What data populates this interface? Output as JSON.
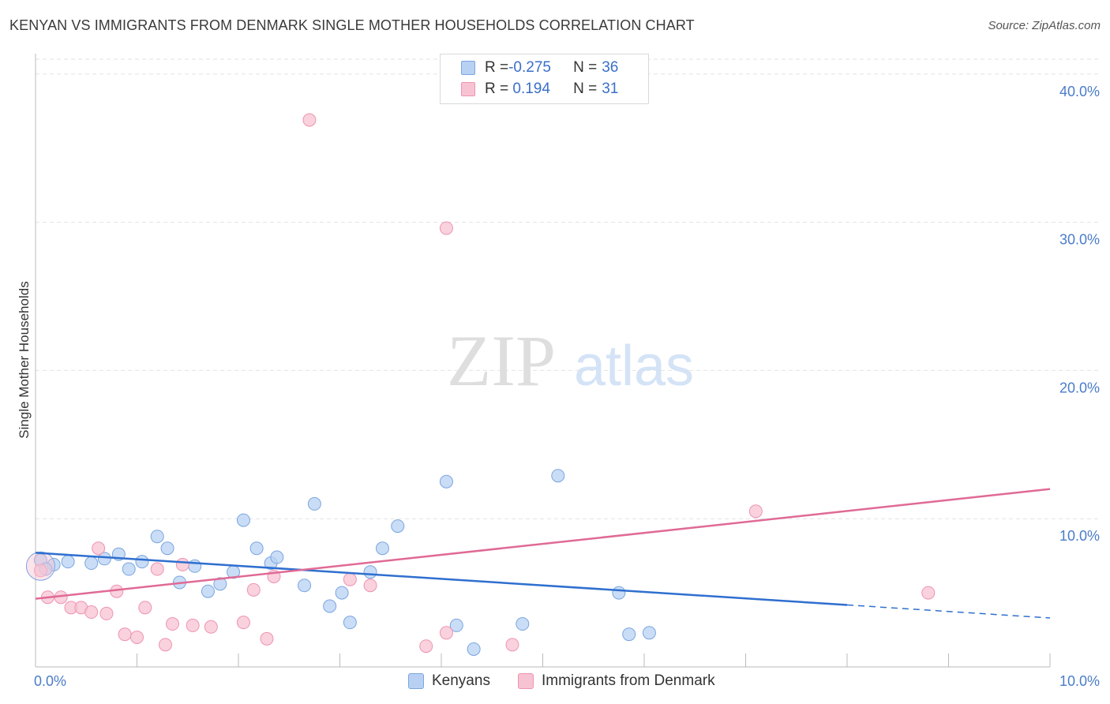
{
  "header": {
    "title": "KENYAN VS IMMIGRANTS FROM DENMARK SINGLE MOTHER HOUSEHOLDS CORRELATION CHART",
    "source": "Source: ZipAtlas.com"
  },
  "watermark": {
    "zip": "ZIP",
    "atlas": "atlas"
  },
  "legend": {
    "rows": [
      {
        "r_label": "R = ",
        "r_value": "-0.275",
        "n_label": "N = ",
        "n_value": "36"
      },
      {
        "r_label": "R = ",
        "r_value": " 0.194",
        "n_label": "N = ",
        "n_value": "31"
      }
    ]
  },
  "bottom_legend": {
    "kenyans": "Kenyans",
    "denmark": "Immigrants from Denmark"
  },
  "colors": {
    "kenyans_fill": "#b8d1f3",
    "kenyans_stroke": "#7aa5e0",
    "kenyans_line": "#2f6fcf",
    "denmark_fill": "#f7c3d3",
    "denmark_stroke": "#ee93b2",
    "denmark_line": "#e06a95",
    "grid": "#e2e2e2",
    "tick": "#4a7cc9"
  },
  "chart_data": {
    "type": "scatter",
    "title": "KENYAN VS IMMIGRANTS FROM DENMARK SINGLE MOTHER HOUSEHOLDS CORRELATION CHART",
    "xlabel": "",
    "ylabel": "Single Mother Households",
    "xlim": [
      0,
      10
    ],
    "ylim": [
      0,
      41
    ],
    "x_ticks": [
      "0.0%",
      "10.0%"
    ],
    "y_ticks": [
      {
        "value": 10,
        "label": "10.0%"
      },
      {
        "value": 20,
        "label": "20.0%"
      },
      {
        "value": 30,
        "label": "30.0%"
      },
      {
        "value": 40,
        "label": "40.0%"
      }
    ],
    "grid": true,
    "series": [
      {
        "name": "Kenyans",
        "r": -0.275,
        "n": 36,
        "trend": {
          "x0": 0,
          "y0": 7.7,
          "x1": 10,
          "y1": 3.3,
          "solid_until": 8
        },
        "points": [
          [
            0.05,
            7.2
          ],
          [
            0.18,
            6.9
          ],
          [
            0.32,
            7.1
          ],
          [
            0.55,
            7.0
          ],
          [
            0.68,
            7.3
          ],
          [
            0.82,
            7.6
          ],
          [
            0.92,
            6.6
          ],
          [
            1.05,
            7.1
          ],
          [
            1.2,
            8.8
          ],
          [
            1.3,
            8.0
          ],
          [
            1.42,
            5.7
          ],
          [
            1.57,
            6.8
          ],
          [
            1.7,
            5.1
          ],
          [
            1.82,
            5.6
          ],
          [
            1.95,
            6.4
          ],
          [
            2.05,
            9.9
          ],
          [
            2.18,
            8.0
          ],
          [
            2.32,
            7.0
          ],
          [
            2.38,
            7.4
          ],
          [
            2.65,
            5.5
          ],
          [
            2.75,
            11.0
          ],
          [
            2.9,
            4.1
          ],
          [
            3.02,
            5.0
          ],
          [
            3.1,
            3.0
          ],
          [
            3.3,
            6.4
          ],
          [
            3.42,
            8.0
          ],
          [
            3.57,
            9.5
          ],
          [
            4.05,
            12.5
          ],
          [
            4.15,
            2.8
          ],
          [
            4.32,
            1.2
          ],
          [
            4.8,
            2.9
          ],
          [
            5.15,
            12.9
          ],
          [
            5.75,
            5.0
          ],
          [
            5.85,
            2.2
          ],
          [
            6.05,
            2.3
          ],
          [
            0.1,
            6.6
          ]
        ]
      },
      {
        "name": "Immigrants from Denmark",
        "r": 0.194,
        "n": 31,
        "trend": {
          "x0": 0,
          "y0": 4.6,
          "x1": 10,
          "y1": 12.0
        },
        "points": [
          [
            0.05,
            6.5
          ],
          [
            0.12,
            4.7
          ],
          [
            0.25,
            4.7
          ],
          [
            0.35,
            4.0
          ],
          [
            0.45,
            4.0
          ],
          [
            0.55,
            3.7
          ],
          [
            0.62,
            8.0
          ],
          [
            0.7,
            3.6
          ],
          [
            0.8,
            5.1
          ],
          [
            0.88,
            2.2
          ],
          [
            1.0,
            2.0
          ],
          [
            1.08,
            4.0
          ],
          [
            1.2,
            6.6
          ],
          [
            1.28,
            1.5
          ],
          [
            1.35,
            2.9
          ],
          [
            1.45,
            6.9
          ],
          [
            1.55,
            2.8
          ],
          [
            1.73,
            2.7
          ],
          [
            2.05,
            3.0
          ],
          [
            2.15,
            5.2
          ],
          [
            2.28,
            1.9
          ],
          [
            2.35,
            6.1
          ],
          [
            2.7,
            36.9
          ],
          [
            3.1,
            5.9
          ],
          [
            3.3,
            5.5
          ],
          [
            3.85,
            1.4
          ],
          [
            4.05,
            2.3
          ],
          [
            4.05,
            29.6
          ],
          [
            4.7,
            1.5
          ],
          [
            7.1,
            10.5
          ],
          [
            8.8,
            5.0
          ]
        ]
      }
    ]
  }
}
